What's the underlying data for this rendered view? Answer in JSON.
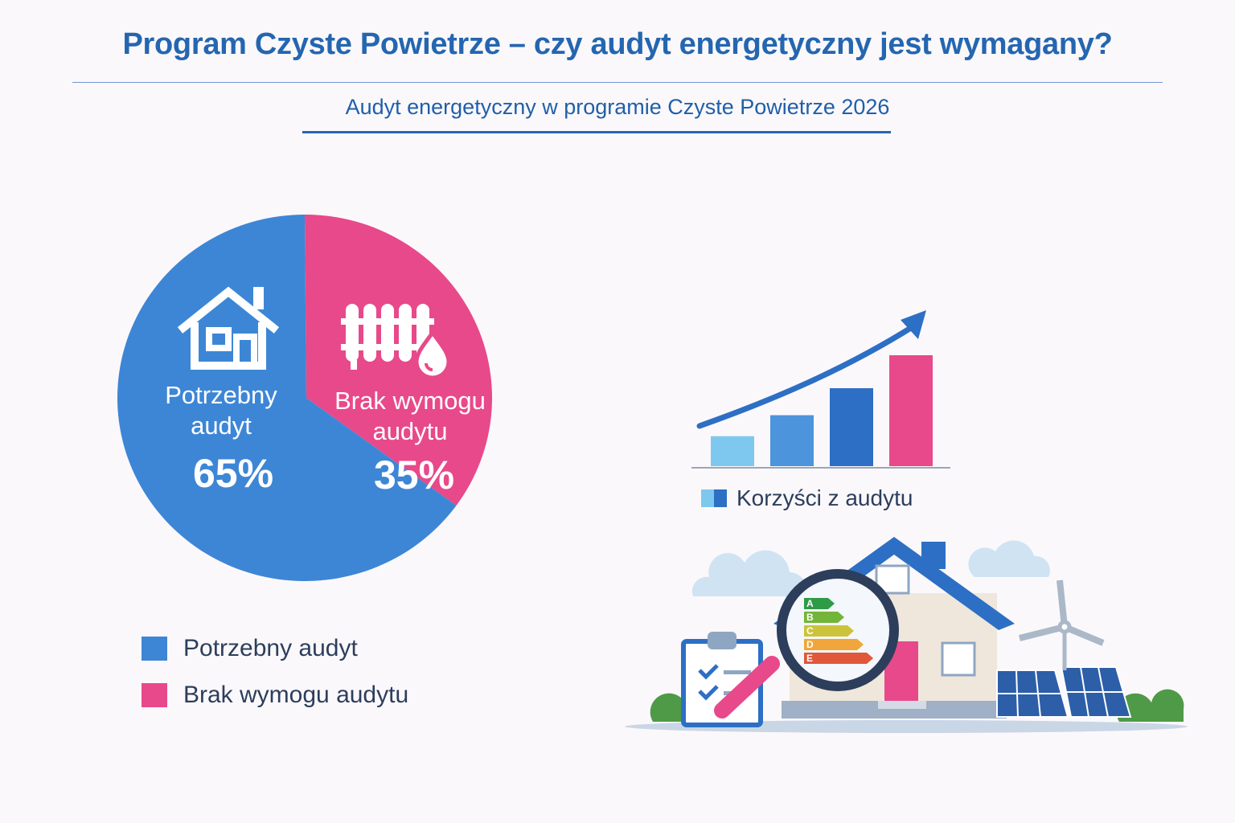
{
  "header": {
    "title": "Program Czyste Powietrze – czy audyt energetyczny jest wymagany?",
    "subtitle": "Audyt energetyczny w programie Czyste Powietrze 2026"
  },
  "chart_data": [
    {
      "type": "pie",
      "slices": [
        {
          "label_line1": "Potrzebny",
          "label_line2": "audyt",
          "value": 65,
          "value_label": "65%",
          "color": "#3d86d6",
          "icon": "house-icon"
        },
        {
          "label_line1": "Brak wymogu",
          "label_line2": "audytu",
          "value": 35,
          "value_label": "35%",
          "color": "#e8498a",
          "icon": "radiator-icon"
        }
      ],
      "legend": [
        {
          "label": "Potrzebny audyt",
          "color": "#3d86d6"
        },
        {
          "label": "Brak wymogu audytu",
          "color": "#e8498a"
        }
      ],
      "legend_position": "bottom-left"
    },
    {
      "type": "bar",
      "values": [
        1,
        1.7,
        2.6,
        3.7
      ],
      "colors": [
        "#7ec8ef",
        "#4c94dc",
        "#2d6fc4",
        "#e8498a"
      ],
      "trend_arrow": true,
      "legend": [
        {
          "label": "Korzyści z audytu",
          "colors": [
            "#7ec8ef",
            "#2d6fc4"
          ]
        }
      ]
    }
  ],
  "illustration": {
    "icon": "house-energy-audit-icon",
    "energy_classes": [
      "A",
      "B",
      "C",
      "D",
      "E"
    ],
    "class_colors": [
      "#2f9b46",
      "#73b43a",
      "#cbc43a",
      "#f0a63a",
      "#e0573a"
    ]
  }
}
